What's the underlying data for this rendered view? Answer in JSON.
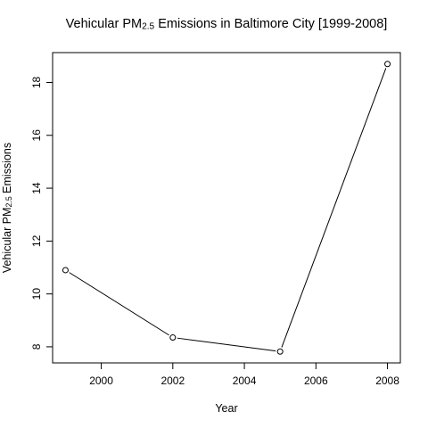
{
  "chart_data": {
    "type": "line",
    "title_main": "Vehicular PM",
    "title_sub": "2.5",
    "title_rest": " Emissions in Baltimore City [1999-2008]",
    "xlabel": "Year",
    "ylabel_main": "Vehicular PM",
    "ylabel_sub": "2.5",
    "ylabel_rest": " Emissions",
    "x": [
      1999,
      2002,
      2005,
      2008
    ],
    "y": [
      10.9,
      8.35,
      7.82,
      18.7
    ],
    "xlim": [
      1998.64,
      2008.36
    ],
    "ylim": [
      7.39,
      19.13
    ],
    "xticks": [
      2000,
      2002,
      2004,
      2006,
      2008
    ],
    "yticks": [
      8,
      10,
      12,
      14,
      16,
      18
    ],
    "marker": "open-circle",
    "line_color": "#000000",
    "grid": false,
    "legend": "none"
  }
}
